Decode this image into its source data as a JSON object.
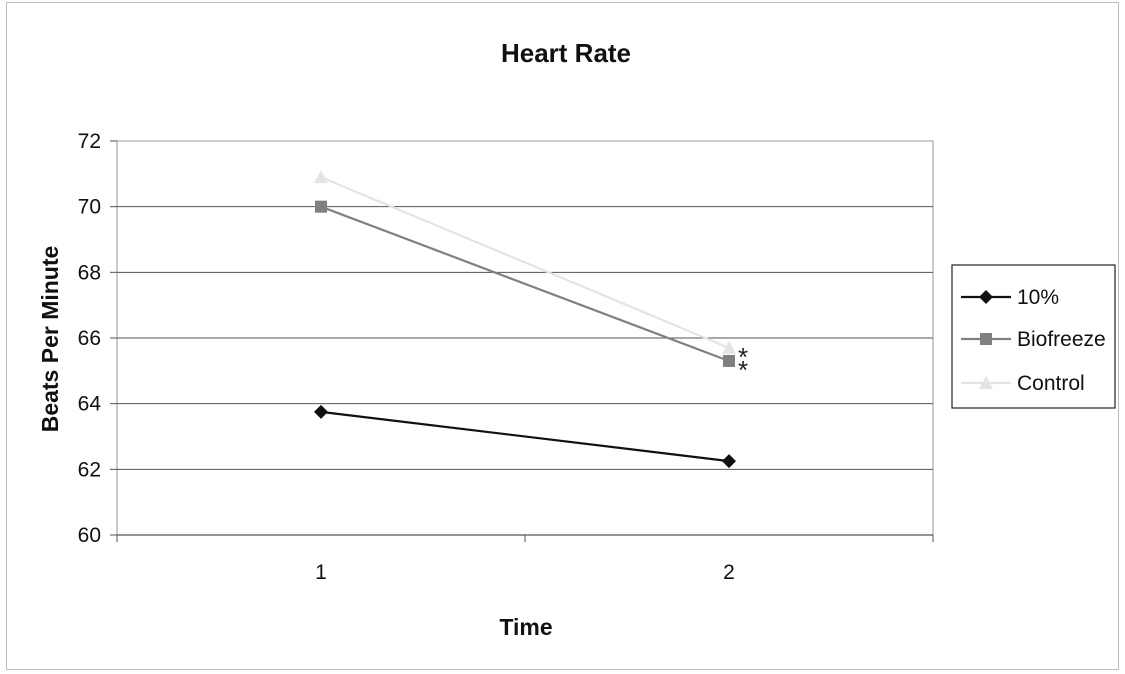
{
  "chart_data": {
    "type": "line",
    "title": "Heart Rate",
    "xlabel": "Time",
    "ylabel": "Beats Per Minute",
    "x": [
      1,
      2
    ],
    "x_tick_labels": [
      "1",
      "2"
    ],
    "ylim": [
      60,
      72
    ],
    "y_ticks": [
      60,
      62,
      64,
      66,
      68,
      70,
      72
    ],
    "grid": true,
    "legend_position": "right",
    "series": [
      {
        "name": "10%",
        "values": [
          63.75,
          62.25
        ],
        "color": "#111111",
        "marker": "diamond"
      },
      {
        "name": "Biofreeze",
        "values": [
          70.0,
          65.3
        ],
        "color": "#808080",
        "marker": "square"
      },
      {
        "name": "Control",
        "values": [
          70.9,
          65.7
        ],
        "color": "#e4e4e4",
        "marker": "triangle"
      }
    ],
    "annotations": [
      {
        "text": "*",
        "series": "Control",
        "x": 2
      },
      {
        "text": "*",
        "series": "Biofreeze",
        "x": 2
      }
    ]
  }
}
